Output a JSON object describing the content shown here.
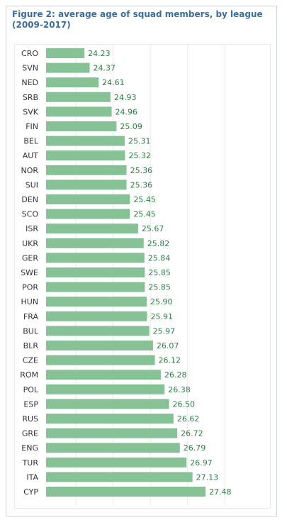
{
  "chart_data": {
    "type": "bar",
    "orientation": "horizontal",
    "title": "Figure 2: average age of squad members, by league (2009-2017)",
    "categories": [
      "CRO",
      "SVN",
      "NED",
      "SRB",
      "SVK",
      "FIN",
      "BEL",
      "AUT",
      "NOR",
      "SUI",
      "DEN",
      "SCO",
      "ISR",
      "UKR",
      "GER",
      "SWE",
      "POR",
      "HUN",
      "FRA",
      "BUL",
      "BLR",
      "CZE",
      "ROM",
      "POL",
      "ESP",
      "RUS",
      "GRE",
      "ENG",
      "TUR",
      "ITA",
      "CYP"
    ],
    "value_labels": [
      "24.23",
      "24.37",
      "24.61",
      "24.93",
      "24.96",
      "25.09",
      "25.31",
      "25.32",
      "25.36",
      "25.36",
      "25.45",
      "25.45",
      "25.67",
      "25.82",
      "25.84",
      "25.85",
      "25.85",
      "25.90",
      "25.91",
      "25.97",
      "26.07",
      "26.12",
      "26.28",
      "26.38",
      "26.50",
      "26.62",
      "26.72",
      "26.79",
      "26.97",
      "27.13",
      "27.48"
    ],
    "values": [
      24.23,
      24.37,
      24.61,
      24.93,
      24.96,
      25.09,
      25.31,
      25.32,
      25.36,
      25.36,
      25.45,
      25.45,
      25.67,
      25.82,
      25.84,
      25.85,
      25.85,
      25.9,
      25.91,
      25.97,
      26.07,
      26.12,
      26.28,
      26.38,
      26.5,
      26.62,
      26.72,
      26.79,
      26.97,
      27.13,
      27.48
    ],
    "xlim": [
      23.2,
      29.0
    ],
    "grid": true,
    "colors": {
      "bar": "#86c295",
      "value_label": "#2e7d46",
      "category_label": "#333333",
      "title": "#3c6e9c",
      "grid": "#e8e8e8",
      "frame": "#c9d3de"
    }
  }
}
